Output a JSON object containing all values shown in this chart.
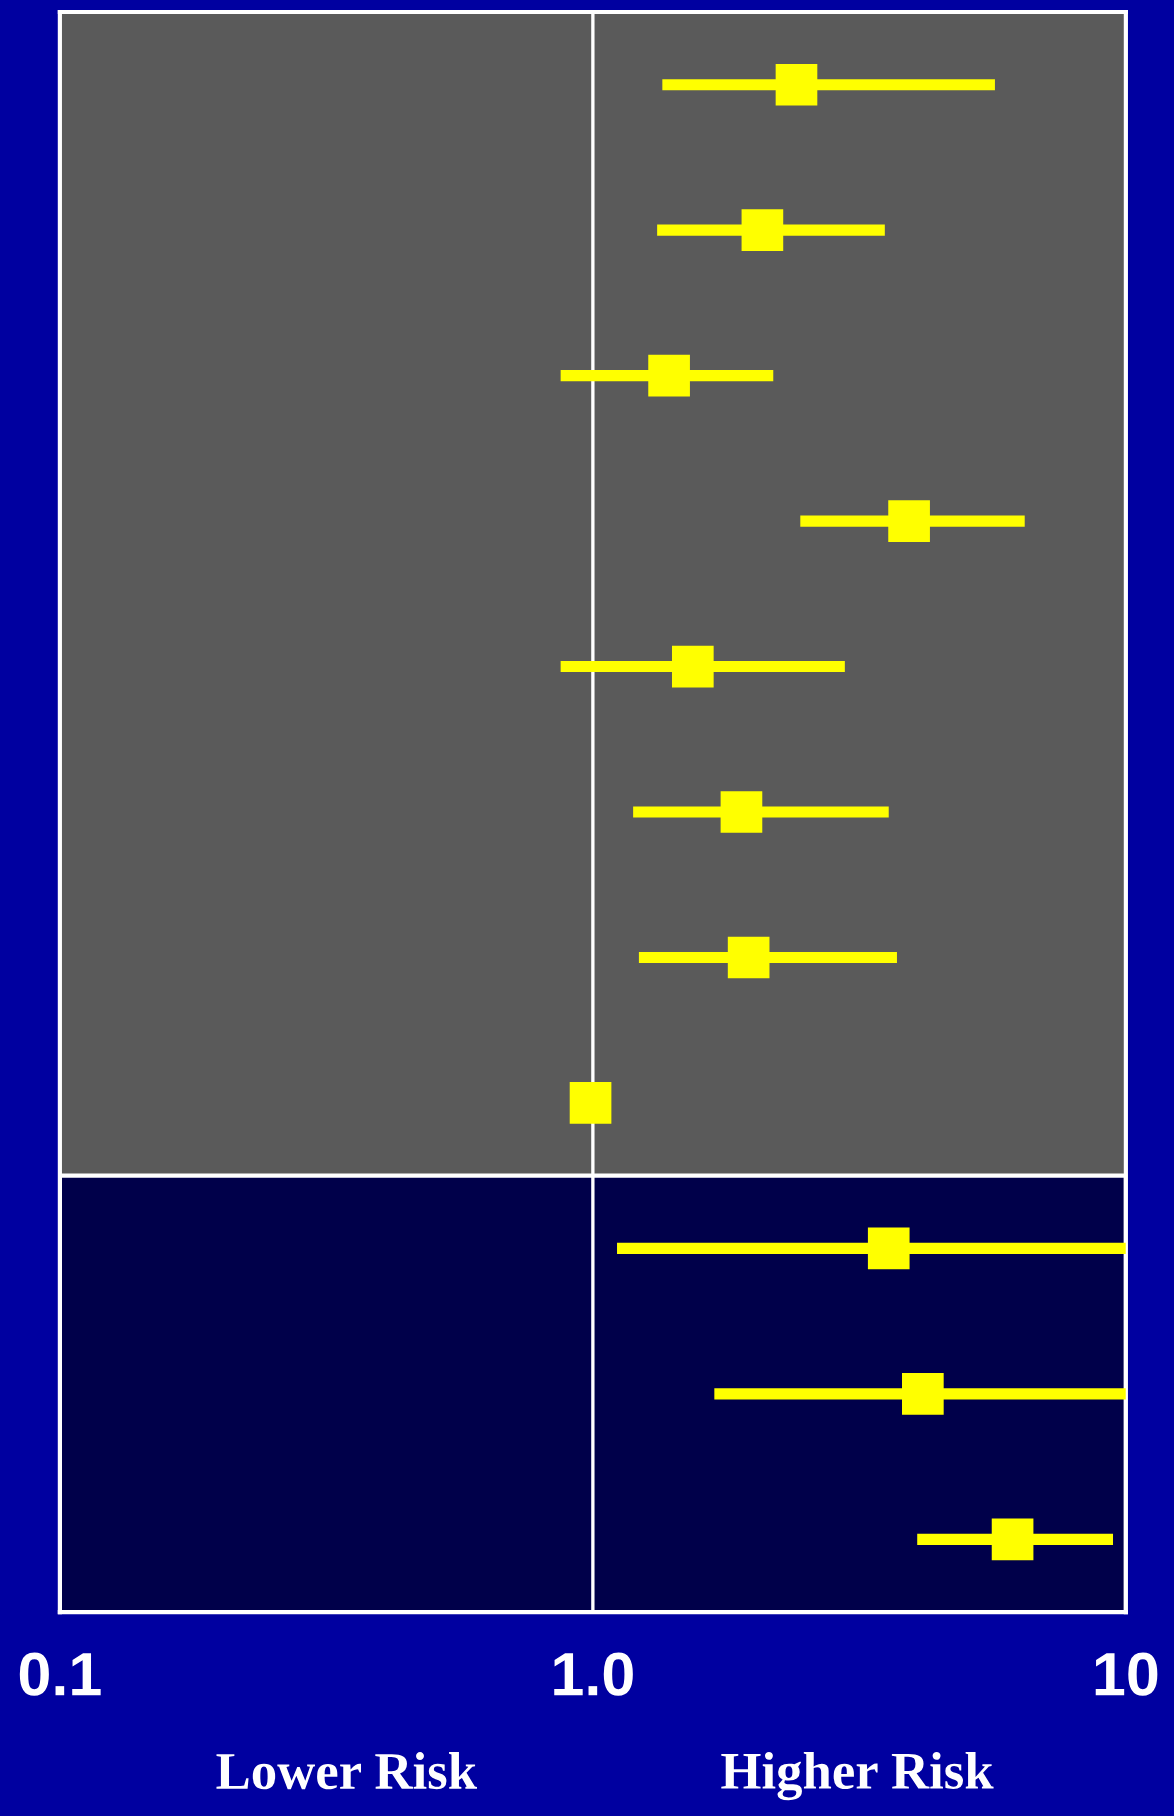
{
  "chart_data": {
    "type": "scatter",
    "orientation": "horizontal",
    "log": "x",
    "grid": false,
    "marker": "square",
    "color": "#ffff00",
    "categories": [
      null,
      null,
      null,
      null,
      null,
      null,
      null,
      null,
      null,
      null,
      null
    ],
    "values": [
      2.41,
      2.08,
      1.39,
      3.92,
      1.54,
      1.9,
      1.96,
      0.99,
      3.59,
      4.16,
      6.13
    ],
    "errors": [
      [
        1.35,
        5.68
      ],
      [
        1.32,
        3.53
      ],
      [
        0.87,
        2.18
      ],
      [
        2.45,
        6.46
      ],
      [
        0.87,
        2.97
      ],
      [
        1.19,
        3.59
      ],
      [
        1.22,
        3.72
      ],
      null,
      [
        1.11,
        10
      ],
      [
        1.69,
        10
      ],
      [
        4.06,
        9.46
      ]
    ],
    "xlim": [
      0.1,
      10
    ],
    "xticks": [
      0.1,
      {
        "value": 1,
        "label": "1.0"
      },
      10
    ],
    "ref_lines": [
      {
        "axis": "x",
        "value": 1,
        "color": "#ffffff"
      }
    ],
    "annotations": [
      "Lower Risk",
      "Higher Risk"
    ]
  }
}
